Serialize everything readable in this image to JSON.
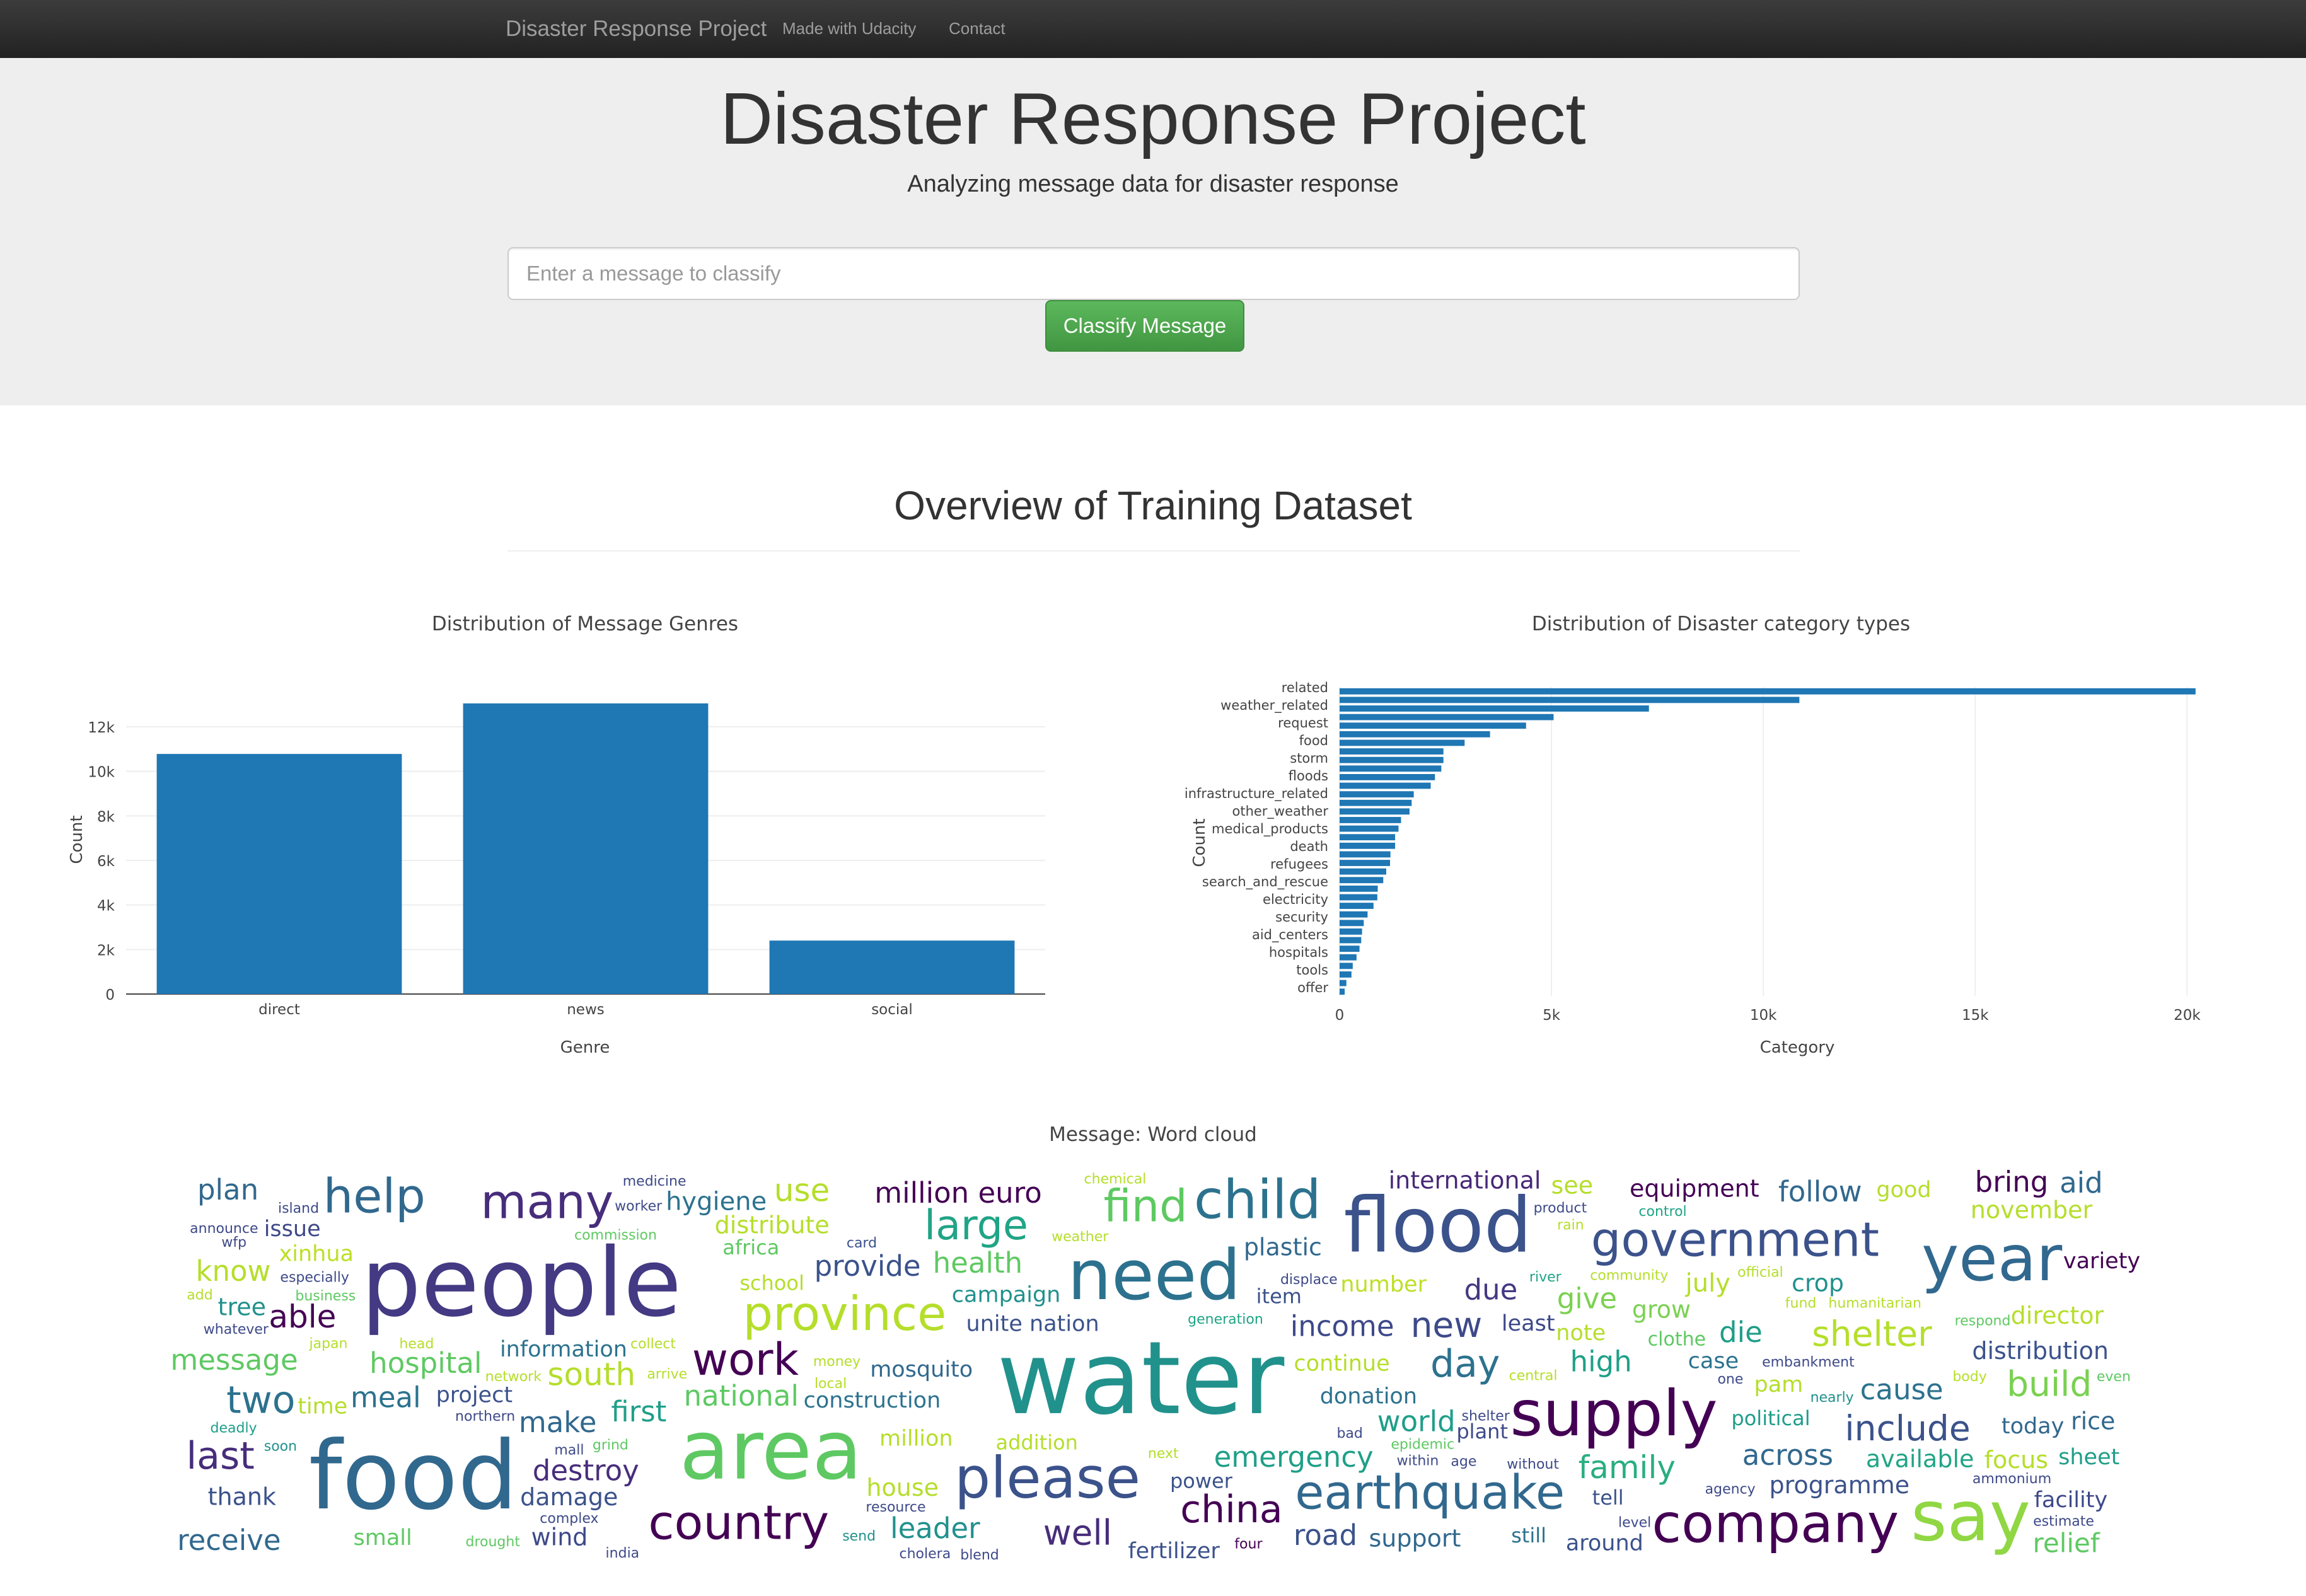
{
  "navbar": {
    "brand": "Disaster Response Project",
    "links": [
      "Made with Udacity",
      "Contact"
    ]
  },
  "hero": {
    "title": "Disaster Response Project",
    "subtitle": "Analyzing message data for disaster response"
  },
  "classify": {
    "placeholder": "Enter a message to classify",
    "button_label": "Classify Message",
    "button_color": "#5cb85c"
  },
  "overview": {
    "title": "Overview of Training Dataset"
  },
  "chart_data": [
    {
      "type": "bar",
      "title": "Distribution of Message Genres",
      "xlabel": "Genre",
      "ylabel": "Count",
      "categories": [
        "direct",
        "news",
        "social"
      ],
      "values": [
        10780,
        13050,
        2400
      ],
      "ylim": [
        0,
        13500
      ],
      "yticks": [
        0,
        2000,
        4000,
        6000,
        8000,
        10000,
        12000
      ],
      "ytick_labels": [
        "0",
        "2k",
        "4k",
        "6k",
        "8k",
        "10k",
        "12k"
      ],
      "grid": true,
      "color": "#1f77b4"
    },
    {
      "type": "bar",
      "orientation": "horizontal",
      "title": "Distribution of Disaster category types",
      "xlabel": "Category",
      "ylabel": "Count",
      "categories": [
        "related",
        "weather_related",
        "request",
        "food",
        "storm",
        "floods",
        "infrastructure_related",
        "other_weather",
        "medical_products",
        "death",
        "refugees",
        "search_and_rescue",
        "electricity",
        "security",
        "aid_centers",
        "hospitals",
        "tools",
        "offer"
      ],
      "bars": [
        20200,
        10850,
        7300,
        5050,
        4400,
        3550,
        2950,
        2450,
        2450,
        2400,
        2250,
        2150,
        1750,
        1700,
        1650,
        1450,
        1390,
        1310,
        1310,
        1200,
        1190,
        1100,
        1030,
        900,
        890,
        800,
        660,
        570,
        530,
        510,
        470,
        400,
        310,
        280,
        160,
        120
      ],
      "xlim": [
        0,
        20500
      ],
      "xticks": [
        0,
        5000,
        10000,
        15000,
        20000
      ],
      "xtick_labels": [
        "0",
        "5k",
        "10k",
        "15k",
        "20k"
      ],
      "grid": true,
      "color": "#1f77b4"
    }
  ],
  "wordcloud": {
    "title": "Message: Word cloud",
    "words": [
      {
        "t": "water",
        "s": 160,
        "c": "#21918c"
      },
      {
        "t": "people",
        "s": 150,
        "c": "#443983"
      },
      {
        "t": "food",
        "s": 150,
        "c": "#31688e"
      },
      {
        "t": "area",
        "s": 130,
        "c": "#5ec962"
      },
      {
        "t": "flood",
        "s": 120,
        "c": "#3b528b"
      },
      {
        "t": "need",
        "s": 110,
        "c": "#2c728e"
      },
      {
        "t": "say",
        "s": 110,
        "c": "#90d743"
      },
      {
        "t": "year",
        "s": 100,
        "c": "#31688e"
      },
      {
        "t": "supply",
        "s": 100,
        "c": "#440154"
      },
      {
        "t": "please",
        "s": 90,
        "c": "#3b528b"
      },
      {
        "t": "company",
        "s": 85,
        "c": "#440154"
      },
      {
        "t": "child",
        "s": 85,
        "c": "#2c728e"
      },
      {
        "t": "province",
        "s": 75,
        "c": "#b5de2b"
      },
      {
        "t": "country",
        "s": 75,
        "c": "#440154"
      },
      {
        "t": "earthquake",
        "s": 75,
        "c": "#31688e"
      },
      {
        "t": "many",
        "s": 75,
        "c": "#472d7b"
      },
      {
        "t": "help",
        "s": 75,
        "c": "#31688e"
      },
      {
        "t": "government",
        "s": 75,
        "c": "#3b528b"
      },
      {
        "t": "find",
        "s": 70,
        "c": "#5ec962"
      },
      {
        "t": "large",
        "s": 65,
        "c": "#20a486"
      },
      {
        "t": "work",
        "s": 70,
        "c": "#440154"
      },
      {
        "t": "include",
        "s": 55,
        "c": "#3b528b"
      },
      {
        "t": "last",
        "s": 60,
        "c": "#472d7b"
      },
      {
        "t": "two",
        "s": 60,
        "c": "#2c728e"
      },
      {
        "t": "china",
        "s": 60,
        "c": "#440154"
      },
      {
        "t": "well",
        "s": 55,
        "c": "#472d7b"
      },
      {
        "t": "shelter",
        "s": 55,
        "c": "#b5de2b"
      },
      {
        "t": "build",
        "s": 55,
        "c": "#7ad151"
      },
      {
        "t": "family",
        "s": 50,
        "c": "#28ae80"
      },
      {
        "t": "make",
        "s": 45,
        "c": "#31688e"
      },
      {
        "t": "income",
        "s": 45,
        "c": "#3e4989"
      },
      {
        "t": "able",
        "s": 50,
        "c": "#440154"
      },
      {
        "t": "south",
        "s": 50,
        "c": "#b5de2b"
      },
      {
        "t": "cause",
        "s": 45,
        "c": "#2c728e"
      },
      {
        "t": "health",
        "s": 45,
        "c": "#5ec962"
      },
      {
        "t": "million euro",
        "s": 45,
        "c": "#440154"
      },
      {
        "t": "international",
        "s": 38,
        "c": "#482878"
      },
      {
        "t": "relief",
        "s": 42,
        "c": "#5ec962"
      },
      {
        "t": "follow",
        "s": 45,
        "c": "#31688e"
      },
      {
        "t": "provide",
        "s": 45,
        "c": "#3b528b"
      },
      {
        "t": "high",
        "s": 45,
        "c": "#1fa088"
      },
      {
        "t": "first",
        "s": 45,
        "c": "#1f9e89"
      },
      {
        "t": "leader",
        "s": 45,
        "c": "#21918c"
      },
      {
        "t": "grow",
        "s": 38,
        "c": "#7ad151"
      },
      {
        "t": "hygiene",
        "s": 40,
        "c": "#2c728e"
      },
      {
        "t": "around",
        "s": 35,
        "c": "#3b528b"
      },
      {
        "t": "july",
        "s": 40,
        "c": "#b5de2b"
      },
      {
        "t": "time",
        "s": 35,
        "c": "#b5de2b"
      },
      {
        "t": "unite nation",
        "s": 35,
        "c": "#3b528b"
      },
      {
        "t": "xinhua",
        "s": 35,
        "c": "#bddf26"
      },
      {
        "t": "day",
        "s": 60,
        "c": "#2c728e"
      },
      {
        "t": "die",
        "s": 45,
        "c": "#1f9e89"
      },
      {
        "t": "road",
        "s": 45,
        "c": "#3b528b"
      },
      {
        "t": "distribute",
        "s": 38,
        "c": "#b5de2b"
      },
      {
        "t": "national",
        "s": 45,
        "c": "#5ec962"
      },
      {
        "t": "november",
        "s": 38,
        "c": "#b5de2b"
      },
      {
        "t": "support",
        "s": 38,
        "c": "#31688e"
      },
      {
        "t": "tree",
        "s": 38,
        "c": "#21918c"
      },
      {
        "t": "message",
        "s": 45,
        "c": "#5ec962"
      },
      {
        "t": "plastic",
        "s": 38,
        "c": "#31688e"
      },
      {
        "t": "equipment",
        "s": 38,
        "c": "#440154"
      },
      {
        "t": "know",
        "s": 45,
        "c": "#b5de2b"
      },
      {
        "t": "focus",
        "s": 38,
        "c": "#b5de2b"
      },
      {
        "t": "hospital",
        "s": 45,
        "c": "#5ec962"
      },
      {
        "t": "use",
        "s": 50,
        "c": "#b5de2b"
      },
      {
        "t": "give",
        "s": 45,
        "c": "#7ad151"
      },
      {
        "t": "receive",
        "s": 45,
        "c": "#31688e"
      },
      {
        "t": "sheet",
        "s": 35,
        "c": "#1f9e89"
      },
      {
        "t": "million",
        "s": 35,
        "c": "#b5de2b"
      },
      {
        "t": "campaign",
        "s": 35,
        "c": "#21918c"
      },
      {
        "t": "programme",
        "s": 38,
        "c": "#3b528b"
      },
      {
        "t": "mosquito",
        "s": 35,
        "c": "#31688e"
      },
      {
        "t": "plan",
        "s": 45,
        "c": "#31688e"
      },
      {
        "t": "continue",
        "s": 35,
        "c": "#b5de2b"
      },
      {
        "t": "new",
        "s": 55,
        "c": "#3e4989"
      },
      {
        "t": "wind",
        "s": 38,
        "c": "#3e4989"
      },
      {
        "t": "director",
        "s": 38,
        "c": "#b5de2b"
      },
      {
        "t": "distribution",
        "s": 38,
        "c": "#3b528b"
      },
      {
        "t": "thank",
        "s": 38,
        "c": "#3b528b"
      },
      {
        "t": "due",
        "s": 45,
        "c": "#443983"
      },
      {
        "t": "bring",
        "s": 45,
        "c": "#440154"
      },
      {
        "t": "across",
        "s": 45,
        "c": "#31688e"
      },
      {
        "t": "construction",
        "s": 35,
        "c": "#2c728e"
      },
      {
        "t": "case",
        "s": 35,
        "c": "#2c728e"
      },
      {
        "t": "variety",
        "s": 35,
        "c": "#440154"
      },
      {
        "t": "available",
        "s": 38,
        "c": "#20a486"
      },
      {
        "t": "meal",
        "s": 45,
        "c": "#2c728e"
      },
      {
        "t": "house",
        "s": 38,
        "c": "#b5de2b"
      },
      {
        "t": "world",
        "s": 45,
        "c": "#1f9e89"
      },
      {
        "t": "destroy",
        "s": 45,
        "c": "#472d7b"
      },
      {
        "t": "emergency",
        "s": 45,
        "c": "#1fa088"
      },
      {
        "t": "good",
        "s": 35,
        "c": "#b5de2b"
      },
      {
        "t": "crop",
        "s": 38,
        "c": "#21918c"
      },
      {
        "t": "number",
        "s": 35,
        "c": "#bddf26"
      },
      {
        "t": "note",
        "s": 35,
        "c": "#b5de2b"
      },
      {
        "t": "small",
        "s": 35,
        "c": "#5ec962"
      },
      {
        "t": "facility",
        "s": 35,
        "c": "#3e4989"
      },
      {
        "t": "damage",
        "s": 38,
        "c": "#3b528b"
      },
      {
        "t": "see",
        "s": 38,
        "c": "#b5de2b"
      },
      {
        "t": "issue",
        "s": 35,
        "c": "#3e4989"
      },
      {
        "t": "clothe",
        "s": 30,
        "c": "#5ec962"
      },
      {
        "t": "pam",
        "s": 35,
        "c": "#b5de2b"
      },
      {
        "t": "aid",
        "s": 45,
        "c": "#31688e"
      },
      {
        "t": "fertilizer",
        "s": 35,
        "c": "#3b528b"
      },
      {
        "t": "africa",
        "s": 32,
        "c": "#5ec962"
      },
      {
        "t": "power",
        "s": 32,
        "c": "#3b528b"
      },
      {
        "t": "political",
        "s": 32,
        "c": "#1f9e89"
      },
      {
        "t": "rice",
        "s": 38,
        "c": "#31688e"
      },
      {
        "t": "school",
        "s": 32,
        "c": "#b5de2b"
      },
      {
        "t": "donation",
        "s": 35,
        "c": "#2c728e"
      },
      {
        "t": "project",
        "s": 35,
        "c": "#3b528b"
      },
      {
        "t": "still",
        "s": 32,
        "c": "#2c728e"
      },
      {
        "t": "information",
        "s": 35,
        "c": "#2c728e"
      },
      {
        "t": "least",
        "s": 35,
        "c": "#3e4989"
      },
      {
        "t": "today",
        "s": 35,
        "c": "#31688e"
      },
      {
        "t": "plant",
        "s": 32,
        "c": "#3e4989"
      },
      {
        "t": "item",
        "s": 32,
        "c": "#3b528b"
      },
      {
        "t": "tell",
        "s": 32,
        "c": "#3b528b"
      },
      {
        "t": "addition",
        "s": 32,
        "c": "#b5de2b"
      },
      {
        "t": "money",
        "s": 22,
        "c": "#b5de2b"
      },
      {
        "t": "central",
        "s": 22,
        "c": "#b5de2b"
      },
      {
        "t": "river",
        "s": 22,
        "c": "#20a486"
      },
      {
        "t": "control",
        "s": 22,
        "c": "#20a486"
      },
      {
        "t": "next",
        "s": 22,
        "c": "#b5de2b"
      },
      {
        "t": "four",
        "s": 22,
        "c": "#440154"
      },
      {
        "t": "nearly",
        "s": 22,
        "c": "#21918c"
      },
      {
        "t": "add",
        "s": 22,
        "c": "#b5de2b"
      },
      {
        "t": "card",
        "s": 22,
        "c": "#3b528b"
      },
      {
        "t": "local",
        "s": 22,
        "c": "#b5de2b"
      },
      {
        "t": "head",
        "s": 22,
        "c": "#b5de2b"
      },
      {
        "t": "estimate",
        "s": 22,
        "c": "#3e4989"
      },
      {
        "t": "respond",
        "s": 22,
        "c": "#5ec962"
      },
      {
        "t": "generation",
        "s": 22,
        "c": "#20a486"
      },
      {
        "t": "arrive",
        "s": 22,
        "c": "#b5de2b"
      },
      {
        "t": "announce",
        "s": 22,
        "c": "#3e4989"
      },
      {
        "t": "official",
        "s": 22,
        "c": "#b5de2b"
      },
      {
        "t": "commission",
        "s": 22,
        "c": "#5ec962"
      },
      {
        "t": "deadly",
        "s": 22,
        "c": "#1f9e89"
      },
      {
        "t": "fund",
        "s": 22,
        "c": "#b5de2b"
      },
      {
        "t": "ammonium",
        "s": 22,
        "c": "#3e4989"
      },
      {
        "t": "embankment",
        "s": 22,
        "c": "#3e4989"
      },
      {
        "t": "within",
        "s": 22,
        "c": "#3e4989"
      },
      {
        "t": "wfp",
        "s": 22,
        "c": "#3e4989"
      },
      {
        "t": "rain",
        "s": 22,
        "c": "#b5de2b"
      },
      {
        "t": "one",
        "s": 22,
        "c": "#3e4989"
      },
      {
        "t": "epidemic",
        "s": 22,
        "c": "#5ec962"
      },
      {
        "t": "blend",
        "s": 22,
        "c": "#3e4989"
      },
      {
        "t": "mall",
        "s": 22,
        "c": "#3e4989"
      },
      {
        "t": "soon",
        "s": 22,
        "c": "#21918c"
      },
      {
        "t": "age",
        "s": 22,
        "c": "#3e4989"
      },
      {
        "t": "grind",
        "s": 22,
        "c": "#5ec962"
      },
      {
        "t": "chemical",
        "s": 22,
        "c": "#b5de2b"
      },
      {
        "t": "even",
        "s": 22,
        "c": "#5ec962"
      },
      {
        "t": "product",
        "s": 22,
        "c": "#3e4989"
      },
      {
        "t": "humanitarian",
        "s": 22,
        "c": "#b5de2b"
      },
      {
        "t": "northern",
        "s": 22,
        "c": "#3e4989"
      },
      {
        "t": "drought",
        "s": 22,
        "c": "#5ec962"
      },
      {
        "t": "india",
        "s": 22,
        "c": "#3e4989"
      },
      {
        "t": "cholera",
        "s": 22,
        "c": "#3e4989"
      },
      {
        "t": "business",
        "s": 22,
        "c": "#5ec962"
      },
      {
        "t": "whatever",
        "s": 22,
        "c": "#3e4989"
      },
      {
        "t": "weather",
        "s": 22,
        "c": "#b5de2b"
      },
      {
        "t": "level",
        "s": 22,
        "c": "#3e4989"
      },
      {
        "t": "bad",
        "s": 22,
        "c": "#3e4989"
      },
      {
        "t": "complex",
        "s": 22,
        "c": "#3e4989"
      },
      {
        "t": "worker",
        "s": 22,
        "c": "#3e4989"
      },
      {
        "t": "island",
        "s": 22,
        "c": "#3e4989"
      },
      {
        "t": "network",
        "s": 22,
        "c": "#b5de2b"
      },
      {
        "t": "japan",
        "s": 22,
        "c": "#b5de2b"
      },
      {
        "t": "send",
        "s": 22,
        "c": "#21918c"
      },
      {
        "t": "medicine",
        "s": 22,
        "c": "#3e4989"
      },
      {
        "t": "body",
        "s": 22,
        "c": "#b5de2b"
      },
      {
        "t": "displace",
        "s": 22,
        "c": "#3e4989"
      },
      {
        "t": "agency",
        "s": 22,
        "c": "#3e4989"
      },
      {
        "t": "collect",
        "s": 22,
        "c": "#b5de2b"
      },
      {
        "t": "community",
        "s": 22,
        "c": "#b5de2b"
      },
      {
        "t": "shelter",
        "s": 22,
        "c": "#3e4989"
      },
      {
        "t": "without",
        "s": 22,
        "c": "#3e4989"
      },
      {
        "t": "resource",
        "s": 22,
        "c": "#3e4989"
      },
      {
        "t": "especially",
        "s": 22,
        "c": "#3e4989"
      }
    ]
  }
}
